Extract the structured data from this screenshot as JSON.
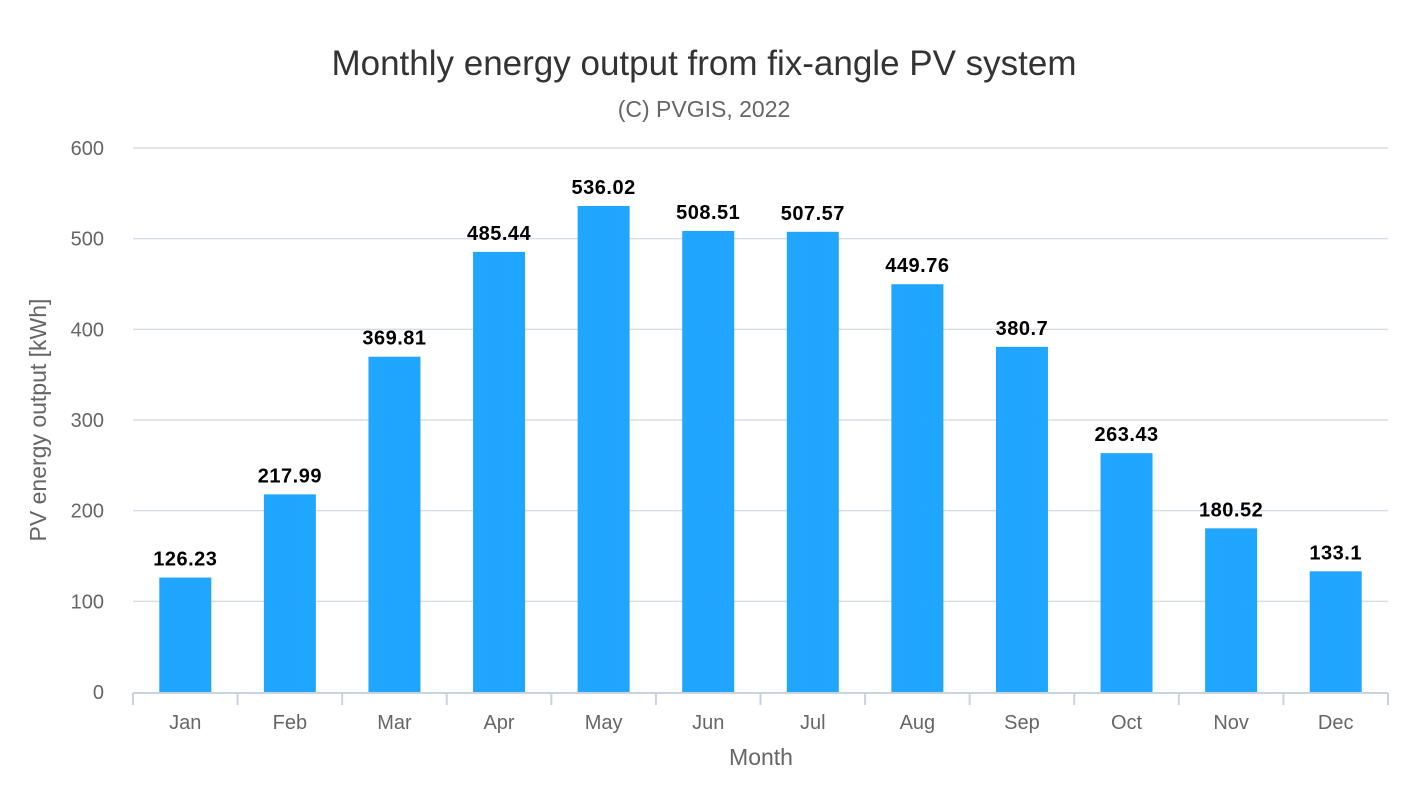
{
  "chart_data": {
    "type": "bar",
    "title": "Monthly energy output from fix-angle PV system",
    "subtitle": "(C) PVGIS, 2022",
    "xlabel": "Month",
    "ylabel": "PV energy output [kWh]",
    "categories": [
      "Jan",
      "Feb",
      "Mar",
      "Apr",
      "May",
      "Jun",
      "Jul",
      "Aug",
      "Sep",
      "Oct",
      "Nov",
      "Dec"
    ],
    "values": [
      126.23,
      217.99,
      369.81,
      485.44,
      536.02,
      508.51,
      507.57,
      449.76,
      380.7,
      263.43,
      180.52,
      133.1
    ],
    "data_labels": [
      "126.23",
      "217.99",
      "369.81",
      "485.44",
      "536.02",
      "508.51",
      "507.57",
      "449.76",
      "380.7",
      "263.43",
      "180.52",
      "133.1"
    ],
    "ylim": [
      0,
      600
    ],
    "yticks": [
      0,
      100,
      200,
      300,
      400,
      500,
      600
    ],
    "grid": true,
    "legend": "none",
    "bar_color": "#21a6ff",
    "grid_color": "#d8dde6",
    "axis_color": "#c8d3e0"
  }
}
